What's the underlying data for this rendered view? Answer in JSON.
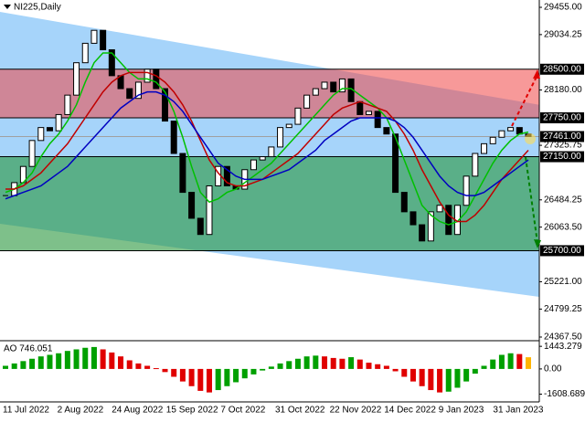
{
  "chart_data": {
    "type": "candlestick",
    "title": "NI225,Daily",
    "x_labels": [
      "11 Jul 2022",
      "2 Aug 2022",
      "24 Aug 2022",
      "15 Sep 2022",
      "7 Oct 2022",
      "31 Oct 2022",
      "22 Nov 2022",
      "14 Dec 2022",
      "9 Jan 2023",
      "31 Jan 2023"
    ],
    "close": [
      26550,
      26750,
      27000,
      27400,
      27600,
      27550,
      27800,
      28100,
      28600,
      28900,
      29100,
      28800,
      28400,
      28200,
      28050,
      28300,
      28500,
      28200,
      27700,
      27200,
      26600,
      26200,
      25950,
      26700,
      27000,
      26700,
      26650,
      26950,
      27100,
      27150,
      27300,
      27600,
      27650,
      27900,
      28100,
      28200,
      28300,
      28150,
      28350,
      28000,
      27800,
      27850,
      27600,
      27500,
      26600,
      26300,
      26100,
      25850,
      26300,
      26400,
      25950,
      26400,
      26850,
      27200,
      27350,
      27450,
      27550,
      27600,
      27500,
      27461
    ],
    "lines": [
      {
        "color": "#00c000",
        "values": [
          26600,
          26650,
          26750,
          26900,
          27150,
          27350,
          27500,
          27700,
          27950,
          28300,
          28600,
          28750,
          28750,
          28600,
          28450,
          28350,
          28350,
          28300,
          28150,
          27850,
          27450,
          27000,
          26600,
          26450,
          26500,
          26600,
          26650,
          26750,
          26850,
          26950,
          27050,
          27200,
          27350,
          27500,
          27650,
          27800,
          27950,
          28100,
          28200,
          28200,
          28100,
          28000,
          27900,
          27750,
          27450,
          27100,
          26750,
          26400,
          26250,
          26150,
          26100,
          26150,
          26300,
          26550,
          26800,
          27050,
          27250,
          27400,
          27500,
          27530
        ]
      },
      {
        "color": "#c00000",
        "values": [
          26650,
          26650,
          26700,
          26800,
          26900,
          27050,
          27200,
          27350,
          27550,
          27750,
          27950,
          28150,
          28300,
          28400,
          28450,
          28450,
          28450,
          28400,
          28300,
          28150,
          27950,
          27700,
          27400,
          27100,
          26900,
          26750,
          26700,
          26700,
          26750,
          26800,
          26900,
          27000,
          27100,
          27200,
          27350,
          27500,
          27650,
          27800,
          27900,
          27950,
          28000,
          27950,
          27900,
          27850,
          27700,
          27500,
          27250,
          26950,
          26700,
          26450,
          26250,
          26150,
          26150,
          26250,
          26400,
          26600,
          26800,
          26950,
          27100,
          27250
        ]
      },
      {
        "color": "#0000c0",
        "values": [
          26500,
          26550,
          26600,
          26650,
          26700,
          26800,
          26900,
          27000,
          27150,
          27300,
          27450,
          27600,
          27750,
          27900,
          28000,
          28100,
          28150,
          28150,
          28100,
          28000,
          27850,
          27650,
          27450,
          27250,
          27050,
          26950,
          26850,
          26800,
          26800,
          26800,
          26850,
          26900,
          26950,
          27050,
          27150,
          27250,
          27400,
          27500,
          27600,
          27700,
          27750,
          27750,
          27750,
          27750,
          27700,
          27600,
          27450,
          27250,
          27050,
          26850,
          26700,
          26600,
          26550,
          26550,
          26600,
          26700,
          26800,
          26900,
          27000,
          27100
        ]
      }
    ],
    "ylim": [
      24325,
      29568
    ],
    "yticks": [
      {
        "value": 29455,
        "label": "29455.00"
      },
      {
        "value": 29034.25,
        "label": "29034.25"
      },
      {
        "value": 28180,
        "label": "28180.00"
      },
      {
        "value": 27325.75,
        "label": "27325.75"
      },
      {
        "value": 26484.25,
        "label": "26484.25"
      },
      {
        "value": 26063.5,
        "label": "26063.50"
      },
      {
        "value": 25221,
        "label": "25221.00"
      },
      {
        "value": 24799.25,
        "label": "24799.25"
      },
      {
        "value": 24367.5,
        "label": "24367.50"
      }
    ],
    "levels": [
      {
        "value": 28500,
        "label": "28500.00",
        "color": "#000000"
      },
      {
        "value": 27750,
        "label": "27750.00",
        "color": "#000000"
      },
      {
        "value": 27461,
        "label": "27461.00",
        "color": "#a0a0a0"
      },
      {
        "value": 27150,
        "label": "27150.00",
        "color": "#000000"
      },
      {
        "value": 25700,
        "label": "25700.00",
        "color": "#000000"
      }
    ],
    "zones": [
      {
        "from": 27750,
        "to": 28500,
        "color": "rgba(240,70,70,0.55)"
      },
      {
        "from": 25700,
        "to": 27150,
        "color": "rgba(40,150,60,0.6)"
      }
    ],
    "channel": {
      "upper": [
        29385,
        27950
      ],
      "lower": [
        26115,
        24988
      ],
      "color": "#a6d4fa"
    },
    "indicator": {
      "label": "AO 746.051",
      "values": [
        200,
        350,
        500,
        650,
        800,
        900,
        1000,
        1150,
        1250,
        1350,
        1400,
        1250,
        1050,
        800,
        550,
        350,
        200,
        50,
        -200,
        -500,
        -800,
        -1100,
        -1400,
        -1500,
        -1350,
        -1100,
        -850,
        -600,
        -350,
        -100,
        150,
        350,
        500,
        650,
        800,
        850,
        800,
        700,
        650,
        750,
        600,
        400,
        300,
        200,
        -150,
        -500,
        -800,
        -1100,
        -1350,
        -1500,
        -1450,
        -1200,
        -800,
        -300,
        200,
        600,
        900,
        1000,
        950,
        746.051
      ],
      "ylim": [
        -2105,
        1744
      ],
      "yticks": [
        1443.279,
        {
          "value": 0,
          "label": "0.00"
        },
        -1608.689
      ],
      "up_color": "#00a000",
      "down_color": "#e00000",
      "last_color": "#ffb400"
    }
  }
}
